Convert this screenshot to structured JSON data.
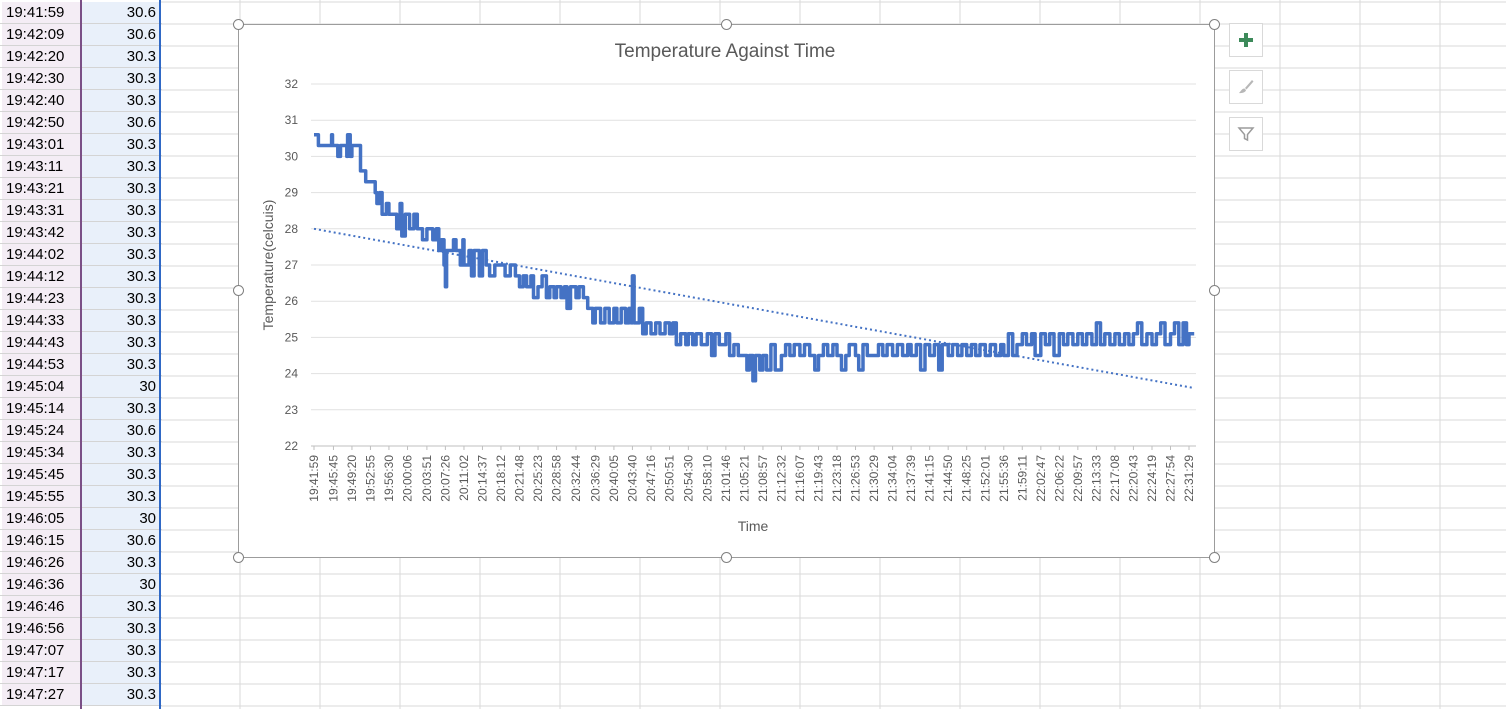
{
  "spreadsheet": {
    "rows": [
      {
        "time": "19:41:59",
        "temp": "30.6"
      },
      {
        "time": "19:42:09",
        "temp": "30.6"
      },
      {
        "time": "19:42:20",
        "temp": "30.3"
      },
      {
        "time": "19:42:30",
        "temp": "30.3"
      },
      {
        "time": "19:42:40",
        "temp": "30.3"
      },
      {
        "time": "19:42:50",
        "temp": "30.6"
      },
      {
        "time": "19:43:01",
        "temp": "30.3"
      },
      {
        "time": "19:43:11",
        "temp": "30.3"
      },
      {
        "time": "19:43:21",
        "temp": "30.3"
      },
      {
        "time": "19:43:31",
        "temp": "30.3"
      },
      {
        "time": "19:43:42",
        "temp": "30.3"
      },
      {
        "time": "19:44:02",
        "temp": "30.3"
      },
      {
        "time": "19:44:12",
        "temp": "30.3"
      },
      {
        "time": "19:44:23",
        "temp": "30.3"
      },
      {
        "time": "19:44:33",
        "temp": "30.3"
      },
      {
        "time": "19:44:43",
        "temp": "30.3"
      },
      {
        "time": "19:44:53",
        "temp": "30.3"
      },
      {
        "time": "19:45:04",
        "temp": "30"
      },
      {
        "time": "19:45:14",
        "temp": "30.3"
      },
      {
        "time": "19:45:24",
        "temp": "30.6"
      },
      {
        "time": "19:45:34",
        "temp": "30.3"
      },
      {
        "time": "19:45:45",
        "temp": "30.3"
      },
      {
        "time": "19:45:55",
        "temp": "30.3"
      },
      {
        "time": "19:46:05",
        "temp": "30"
      },
      {
        "time": "19:46:15",
        "temp": "30.6"
      },
      {
        "time": "19:46:26",
        "temp": "30.3"
      },
      {
        "time": "19:46:36",
        "temp": "30"
      },
      {
        "time": "19:46:46",
        "temp": "30.3"
      },
      {
        "time": "19:46:56",
        "temp": "30.3"
      },
      {
        "time": "19:47:07",
        "temp": "30.3"
      },
      {
        "time": "19:47:17",
        "temp": "30.3"
      },
      {
        "time": "19:47:27",
        "temp": "30.3"
      }
    ]
  },
  "chart_tools": {
    "add_element_icon": "plus-icon",
    "styles_icon": "paintbrush-icon",
    "filter_icon": "funnel-icon"
  },
  "chart_data": {
    "type": "line",
    "title": "Temperature Against Time",
    "xlabel": "Time",
    "ylabel": "Temperature(celcuis)",
    "ylim": [
      22,
      32
    ],
    "yticks": [
      22,
      23,
      24,
      25,
      26,
      27,
      28,
      29,
      30,
      31,
      32
    ],
    "grid": true,
    "legend": "none",
    "x_tick_labels": [
      "19:41:59",
      "19:45:45",
      "19:49:20",
      "19:52:55",
      "19:56:30",
      "20:00:06",
      "20:03:51",
      "20:07:26",
      "20:11:02",
      "20:14:37",
      "20:18:12",
      "20:21:48",
      "20:25:23",
      "20:28:58",
      "20:32:44",
      "20:36:29",
      "20:40:05",
      "20:43:40",
      "20:47:16",
      "20:50:51",
      "20:54:30",
      "20:58:10",
      "21:01:46",
      "21:05:21",
      "21:08:57",
      "21:12:32",
      "21:16:07",
      "21:19:43",
      "21:23:18",
      "21:26:53",
      "21:30:29",
      "21:34:04",
      "21:37:39",
      "21:41:15",
      "21:44:50",
      "21:48:25",
      "21:52:01",
      "21:55:36",
      "21:59:11",
      "22:02:47",
      "22:06:22",
      "22:09:57",
      "22:13:33",
      "22:17:08",
      "22:20:43",
      "22:24:19",
      "22:27:54",
      "22:31:29"
    ],
    "series": [
      {
        "color": "#4472c4",
        "points": [
          [
            "19:41:59",
            30.6
          ],
          [
            "19:42:50",
            30.3
          ],
          [
            "19:45:24",
            30.6
          ],
          [
            "19:45:34",
            30.3
          ],
          [
            "19:46:36",
            30.0
          ],
          [
            "19:47:07",
            30.3
          ],
          [
            "19:48:20",
            30.0
          ],
          [
            "19:48:30",
            30.6
          ],
          [
            "19:49:00",
            30.0
          ],
          [
            "19:49:20",
            30.3
          ],
          [
            "19:50:40",
            30.3
          ],
          [
            "19:51:00",
            29.6
          ],
          [
            "19:51:40",
            29.6
          ],
          [
            "19:52:00",
            29.3
          ],
          [
            "19:53:50",
            29.0
          ],
          [
            "19:54:10",
            28.7
          ],
          [
            "19:54:40",
            29.0
          ],
          [
            "19:55:10",
            28.4
          ],
          [
            "19:56:00",
            28.7
          ],
          [
            "19:56:30",
            28.4
          ],
          [
            "19:57:30",
            28.4
          ],
          [
            "19:58:00",
            28.0
          ],
          [
            "19:58:40",
            28.7
          ],
          [
            "19:59:00",
            27.8
          ],
          [
            "19:59:40",
            28.4
          ],
          [
            "20:00:30",
            28.0
          ],
          [
            "20:01:20",
            28.4
          ],
          [
            "20:02:00",
            28.0
          ],
          [
            "20:03:00",
            27.7
          ],
          [
            "20:03:51",
            28.0
          ],
          [
            "20:05:00",
            27.7
          ],
          [
            "20:05:40",
            28.0
          ],
          [
            "20:06:10",
            27.4
          ],
          [
            "20:06:40",
            27.7
          ],
          [
            "20:07:10",
            27.0
          ],
          [
            "20:07:26",
            26.4
          ],
          [
            "20:07:40",
            27.4
          ],
          [
            "20:09:00",
            27.7
          ],
          [
            "20:09:30",
            27.4
          ],
          [
            "20:10:20",
            27.0
          ],
          [
            "20:10:50",
            27.7
          ],
          [
            "20:11:02",
            27.0
          ],
          [
            "20:12:00",
            27.4
          ],
          [
            "20:12:30",
            26.7
          ],
          [
            "20:13:00",
            27.4
          ],
          [
            "20:14:00",
            26.7
          ],
          [
            "20:14:37",
            27.4
          ],
          [
            "20:15:20",
            27.0
          ],
          [
            "20:16:00",
            26.7
          ],
          [
            "20:17:00",
            27.0
          ],
          [
            "20:18:12",
            27.0
          ],
          [
            "20:19:00",
            26.7
          ],
          [
            "20:20:00",
            27.0
          ],
          [
            "20:21:00",
            26.7
          ],
          [
            "20:21:48",
            26.4
          ],
          [
            "20:22:30",
            26.7
          ],
          [
            "20:23:10",
            26.4
          ],
          [
            "20:24:00",
            26.7
          ],
          [
            "20:24:30",
            26.1
          ],
          [
            "20:25:23",
            26.4
          ],
          [
            "20:26:10",
            26.7
          ],
          [
            "20:27:00",
            26.1
          ],
          [
            "20:27:40",
            26.4
          ],
          [
            "20:28:30",
            26.1
          ],
          [
            "20:28:58",
            26.4
          ],
          [
            "20:29:50",
            26.1
          ],
          [
            "20:30:30",
            26.4
          ],
          [
            "20:31:00",
            25.8
          ],
          [
            "20:31:40",
            26.4
          ],
          [
            "20:32:44",
            26.1
          ],
          [
            "20:33:20",
            26.4
          ],
          [
            "20:34:10",
            26.1
          ],
          [
            "20:35:00",
            25.8
          ],
          [
            "20:36:00",
            25.4
          ],
          [
            "20:36:29",
            25.8
          ],
          [
            "20:37:30",
            25.4
          ],
          [
            "20:38:20",
            25.8
          ],
          [
            "20:39:10",
            25.4
          ],
          [
            "20:40:05",
            25.8
          ],
          [
            "20:40:40",
            25.4
          ],
          [
            "20:41:30",
            25.8
          ],
          [
            "20:42:20",
            25.4
          ],
          [
            "20:43:00",
            25.8
          ],
          [
            "20:43:30",
            25.4
          ],
          [
            "20:43:40",
            26.7
          ],
          [
            "20:44:00",
            25.4
          ],
          [
            "20:45:00",
            25.8
          ],
          [
            "20:45:40",
            25.1
          ],
          [
            "20:46:20",
            25.4
          ],
          [
            "20:47:16",
            25.1
          ],
          [
            "20:48:10",
            25.4
          ],
          [
            "20:49:00",
            25.1
          ],
          [
            "20:50:00",
            25.4
          ],
          [
            "20:50:51",
            25.1
          ],
          [
            "20:51:30",
            25.4
          ],
          [
            "20:52:10",
            24.8
          ],
          [
            "20:53:00",
            25.1
          ],
          [
            "20:54:00",
            24.8
          ],
          [
            "20:54:30",
            25.1
          ],
          [
            "20:55:20",
            24.8
          ],
          [
            "20:56:00",
            25.1
          ],
          [
            "20:57:00",
            24.8
          ],
          [
            "20:58:10",
            25.1
          ],
          [
            "20:59:00",
            24.5
          ],
          [
            "20:59:40",
            25.1
          ],
          [
            "21:00:30",
            24.8
          ],
          [
            "21:01:46",
            25.1
          ],
          [
            "21:02:30",
            24.5
          ],
          [
            "21:03:20",
            24.8
          ],
          [
            "21:04:10",
            24.5
          ],
          [
            "21:05:21",
            24.5
          ],
          [
            "21:05:50",
            24.1
          ],
          [
            "21:06:20",
            24.5
          ],
          [
            "21:07:00",
            23.8
          ],
          [
            "21:07:30",
            24.5
          ],
          [
            "21:08:20",
            24.1
          ],
          [
            "21:08:57",
            24.5
          ],
          [
            "21:09:40",
            24.1
          ],
          [
            "21:10:30",
            24.8
          ],
          [
            "21:11:20",
            24.1
          ],
          [
            "21:12:32",
            24.5
          ],
          [
            "21:13:20",
            24.8
          ],
          [
            "21:14:10",
            24.5
          ],
          [
            "21:15:00",
            24.8
          ],
          [
            "21:16:07",
            24.5
          ],
          [
            "21:17:00",
            24.8
          ],
          [
            "21:18:00",
            24.5
          ],
          [
            "21:19:00",
            24.1
          ],
          [
            "21:19:43",
            24.5
          ],
          [
            "21:20:40",
            24.8
          ],
          [
            "21:21:30",
            24.5
          ],
          [
            "21:22:30",
            24.8
          ],
          [
            "21:23:18",
            24.5
          ],
          [
            "21:24:10",
            24.1
          ],
          [
            "21:25:00",
            24.5
          ],
          [
            "21:25:40",
            24.8
          ],
          [
            "21:26:53",
            24.5
          ],
          [
            "21:27:30",
            24.1
          ],
          [
            "21:28:20",
            24.8
          ],
          [
            "21:29:10",
            24.5
          ],
          [
            "21:30:29",
            24.5
          ],
          [
            "21:31:20",
            24.8
          ],
          [
            "21:32:10",
            24.5
          ],
          [
            "21:33:00",
            24.8
          ],
          [
            "21:34:04",
            24.5
          ],
          [
            "21:35:00",
            24.8
          ],
          [
            "21:36:00",
            24.5
          ],
          [
            "21:37:00",
            24.8
          ],
          [
            "21:37:39",
            24.5
          ],
          [
            "21:38:40",
            24.8
          ],
          [
            "21:39:30",
            24.1
          ],
          [
            "21:40:20",
            24.8
          ],
          [
            "21:41:15",
            24.5
          ],
          [
            "21:42:10",
            24.8
          ],
          [
            "21:43:00",
            24.1
          ],
          [
            "21:43:40",
            24.8
          ],
          [
            "21:44:50",
            24.5
          ],
          [
            "21:45:40",
            24.8
          ],
          [
            "21:46:40",
            24.5
          ],
          [
            "21:47:30",
            24.8
          ],
          [
            "21:48:25",
            24.5
          ],
          [
            "21:49:20",
            24.8
          ],
          [
            "21:50:10",
            24.5
          ],
          [
            "21:51:00",
            24.8
          ],
          [
            "21:52:01",
            24.5
          ],
          [
            "21:53:00",
            24.8
          ],
          [
            "21:54:00",
            24.5
          ],
          [
            "21:55:00",
            24.8
          ],
          [
            "21:55:36",
            24.5
          ],
          [
            "21:56:30",
            25.1
          ],
          [
            "21:57:20",
            24.5
          ],
          [
            "21:58:10",
            24.8
          ],
          [
            "21:59:11",
            25.1
          ],
          [
            "22:00:00",
            24.8
          ],
          [
            "22:01:00",
            25.1
          ],
          [
            "22:01:40",
            24.5
          ],
          [
            "22:02:47",
            25.1
          ],
          [
            "22:03:40",
            24.8
          ],
          [
            "22:04:30",
            25.1
          ],
          [
            "22:05:20",
            24.5
          ],
          [
            "22:06:22",
            25.1
          ],
          [
            "22:07:10",
            24.8
          ],
          [
            "22:08:00",
            25.1
          ],
          [
            "22:09:00",
            24.8
          ],
          [
            "22:09:57",
            25.1
          ],
          [
            "22:10:50",
            24.8
          ],
          [
            "22:11:40",
            25.1
          ],
          [
            "22:12:40",
            24.8
          ],
          [
            "22:13:33",
            25.4
          ],
          [
            "22:14:20",
            24.8
          ],
          [
            "22:15:10",
            25.1
          ],
          [
            "22:16:10",
            24.8
          ],
          [
            "22:17:08",
            25.1
          ],
          [
            "22:18:00",
            24.8
          ],
          [
            "22:19:00",
            25.1
          ],
          [
            "22:19:50",
            24.8
          ],
          [
            "22:20:43",
            25.1
          ],
          [
            "22:21:30",
            25.4
          ],
          [
            "22:22:20",
            24.8
          ],
          [
            "22:23:20",
            25.1
          ],
          [
            "22:24:19",
            24.8
          ],
          [
            "22:25:10",
            25.1
          ],
          [
            "22:26:00",
            25.4
          ],
          [
            "22:26:50",
            24.8
          ],
          [
            "22:27:54",
            25.1
          ],
          [
            "22:28:40",
            25.4
          ],
          [
            "22:29:30",
            24.8
          ],
          [
            "22:30:20",
            25.4
          ],
          [
            "22:31:00",
            24.8
          ],
          [
            "22:31:29",
            25.1
          ],
          [
            "22:32:30",
            25.1
          ]
        ]
      }
    ],
    "trendline": {
      "type": "linear",
      "style": "dotted",
      "start": 28.0,
      "end": 23.6
    }
  }
}
